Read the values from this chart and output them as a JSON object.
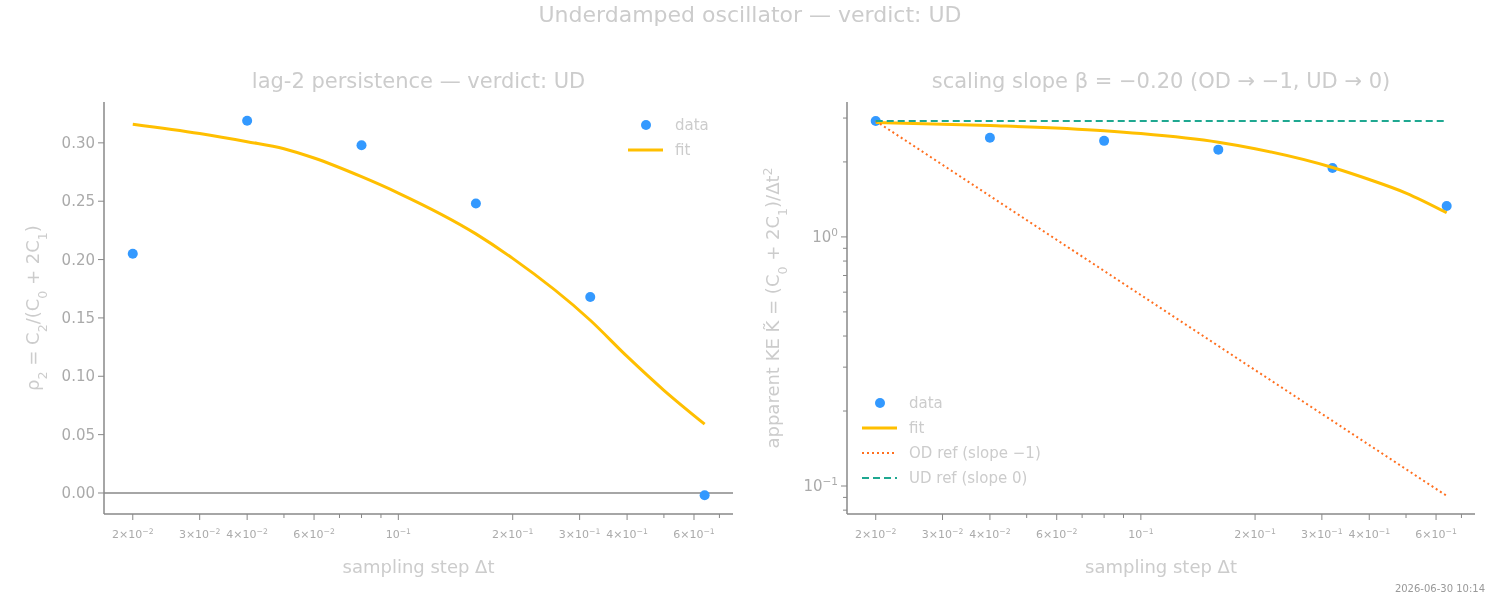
{
  "chart_data": [
    {
      "type": "scatter",
      "title": "lag-2 persistence — verdict: UD",
      "xlabel": "sampling step Δt",
      "ylabel": "ρ$_{2}$ = C$_{2}$/(C$_{0}$ + 2C$_{1}$)",
      "log": "x",
      "xlim": [
        0.0168,
        0.76
      ],
      "ylim": [
        -0.018,
        0.335
      ],
      "xticks": [
        {
          "value": 0.02,
          "label": "2×10$^{−2}$"
        },
        {
          "value": 0.03,
          "label": "3×10$^{−2}$"
        },
        {
          "value": 0.04,
          "label": "4×10$^{−2}$"
        },
        {
          "value": 0.05,
          "label": null
        },
        {
          "value": 0.06,
          "label": "6×10$^{−2}$"
        },
        {
          "value": 0.07,
          "label": null
        },
        {
          "value": 0.08,
          "label": null
        },
        {
          "value": 0.09,
          "label": null
        },
        {
          "value": 0.1,
          "label": "10$^{−1}$"
        },
        {
          "value": 0.2,
          "label": "2×10$^{−1}$"
        },
        {
          "value": 0.3,
          "label": "3×10$^{−1}$"
        },
        {
          "value": 0.4,
          "label": "4×10$^{−1}$"
        },
        {
          "value": 0.5,
          "label": null
        },
        {
          "value": 0.6,
          "label": "6×10$^{−1}$"
        },
        {
          "value": 0.7,
          "label": null
        }
      ],
      "yticks": [
        {
          "value": 0,
          "label": "0.00"
        },
        {
          "value": 0.05,
          "label": "0.05"
        },
        {
          "value": 0.1,
          "label": "0.10"
        },
        {
          "value": 0.15,
          "label": "0.15"
        },
        {
          "value": 0.2,
          "label": "0.20"
        },
        {
          "value": 0.25,
          "label": "0.25"
        },
        {
          "value": 0.3,
          "label": "0.30"
        }
      ],
      "ref_lines": [
        {
          "axis": "y",
          "value": 0,
          "color": "#888888"
        }
      ],
      "legend": "top right",
      "annotations": [
        "Underdamped oscillator — verdict: UD"
      ],
      "series": [
        {
          "name": "data",
          "marker": "circle",
          "color": "#3399ff",
          "x": [
            0.02,
            0.04,
            0.08,
            0.16,
            0.32,
            0.64
          ],
          "values": [
            0.205,
            0.319,
            0.298,
            0.248,
            0.168,
            -0.002
          ]
        },
        {
          "name": "fit",
          "type": "line",
          "color": "#ffbf00",
          "x": [
            0.02,
            0.03,
            0.04,
            0.05,
            0.06,
            0.08,
            0.1,
            0.16,
            0.2,
            0.32,
            0.4,
            0.5,
            0.64
          ],
          "values": [
            0.316,
            0.308,
            0.301,
            0.295,
            0.287,
            0.271,
            0.257,
            0.222,
            0.201,
            0.148,
            0.117,
            0.088,
            0.059
          ]
        }
      ]
    },
    {
      "type": "scatter",
      "title": "scaling slope β = −0.20  (OD → −1, UD → 0)",
      "xlabel": "sampling step Δt",
      "ylabel": "apparent KE K̃ = (C$_{0}$ + 2C$_{1}$)/Δt$^{2}$",
      "log": "xy",
      "xlim": [
        0.0168,
        0.76
      ],
      "ylim": [
        0.0772,
        3.48
      ],
      "xticks": [
        {
          "value": 0.02,
          "label": "2×10$^{−2}$"
        },
        {
          "value": 0.03,
          "label": "3×10$^{−2}$"
        },
        {
          "value": 0.04,
          "label": "4×10$^{−2}$"
        },
        {
          "value": 0.05,
          "label": null
        },
        {
          "value": 0.06,
          "label": "6×10$^{−2}$"
        },
        {
          "value": 0.07,
          "label": null
        },
        {
          "value": 0.08,
          "label": null
        },
        {
          "value": 0.09,
          "label": null
        },
        {
          "value": 0.1,
          "label": "10$^{−1}$"
        },
        {
          "value": 0.2,
          "label": "2×10$^{−1}$"
        },
        {
          "value": 0.3,
          "label": "3×10$^{−1}$"
        },
        {
          "value": 0.4,
          "label": "4×10$^{−1}$"
        },
        {
          "value": 0.5,
          "label": null
        },
        {
          "value": 0.6,
          "label": "6×10$^{−1}$"
        },
        {
          "value": 0.7,
          "label": null
        }
      ],
      "yticks": [
        {
          "value": 0.08,
          "label": null
        },
        {
          "value": 0.09,
          "label": null
        },
        {
          "value": 0.1,
          "label": "10$^{−1}$"
        },
        {
          "value": 0.2,
          "label": null
        },
        {
          "value": 0.3,
          "label": null
        },
        {
          "value": 0.4,
          "label": null
        },
        {
          "value": 0.5,
          "label": null
        },
        {
          "value": 0.6,
          "label": null
        },
        {
          "value": 0.7,
          "label": null
        },
        {
          "value": 0.8,
          "label": null
        },
        {
          "value": 0.9,
          "label": null
        },
        {
          "value": 1,
          "label": "10$^{0}$"
        },
        {
          "value": 2,
          "label": null
        },
        {
          "value": 3,
          "label": null
        }
      ],
      "legend": "bottom left",
      "annotations": [
        "2026-06-30 10:14"
      ],
      "series": [
        {
          "name": "data",
          "marker": "circle",
          "color": "#3399ff",
          "x": [
            0.02,
            0.04,
            0.08,
            0.16,
            0.32,
            0.64
          ],
          "values": [
            2.92,
            2.5,
            2.43,
            2.24,
            1.89,
            1.33
          ]
        },
        {
          "name": "fit",
          "type": "line",
          "color": "#ffbf00",
          "x": [
            0.02,
            0.04,
            0.08,
            0.1,
            0.16,
            0.2,
            0.32,
            0.4,
            0.5,
            0.64
          ],
          "values": [
            2.88,
            2.8,
            2.67,
            2.6,
            2.4,
            2.26,
            1.9,
            1.7,
            1.5,
            1.25
          ]
        },
        {
          "name": "OD ref (slope −1)",
          "type": "line",
          "line_style": "dotted",
          "color": "#ff6f1f",
          "x": [
            0.02,
            0.64
          ],
          "values": [
            2.92,
            0.0913
          ]
        },
        {
          "name": "UD ref (slope 0)",
          "type": "line",
          "line_style": "dashed",
          "color": "#1fa891",
          "x": [
            0.02,
            0.64
          ],
          "values": [
            2.92,
            2.92
          ]
        }
      ]
    }
  ]
}
